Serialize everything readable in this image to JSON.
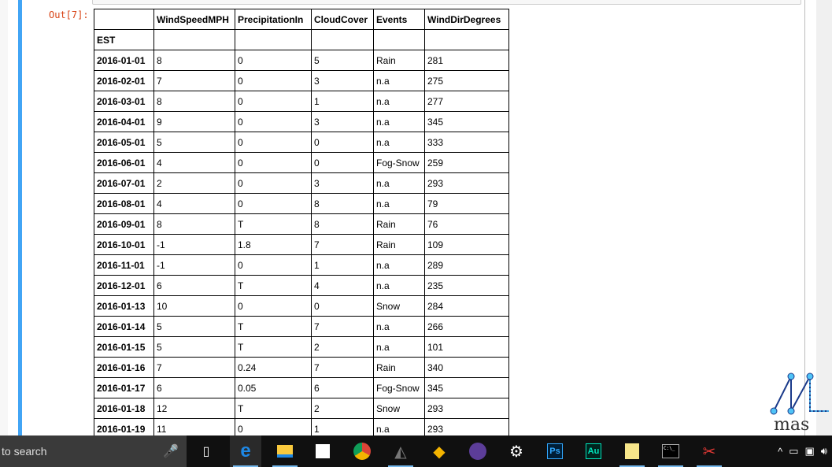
{
  "cell": {
    "prompt": "Out[7]:"
  },
  "table": {
    "columns": [
      "",
      "WindSpeedMPH",
      "PrecipitationIn",
      "CloudCover",
      "Events",
      "WindDirDegrees"
    ],
    "index_name": "EST",
    "rows": [
      [
        "2016-01-01",
        "8",
        "0",
        "5",
        "Rain",
        "281"
      ],
      [
        "2016-02-01",
        "7",
        "0",
        "3",
        "n.a",
        "275"
      ],
      [
        "2016-03-01",
        "8",
        "0",
        "1",
        "n.a",
        "277"
      ],
      [
        "2016-04-01",
        "9",
        "0",
        "3",
        "n.a",
        "345"
      ],
      [
        "2016-05-01",
        "5",
        "0",
        "0",
        "n.a",
        "333"
      ],
      [
        "2016-06-01",
        "4",
        "0",
        "0",
        "Fog-Snow",
        "259"
      ],
      [
        "2016-07-01",
        "2",
        "0",
        "3",
        "n.a",
        "293"
      ],
      [
        "2016-08-01",
        "4",
        "0",
        "8",
        "n.a",
        "79"
      ],
      [
        "2016-09-01",
        "8",
        "T",
        "8",
        "Rain",
        "76"
      ],
      [
        "2016-10-01",
        "-1",
        "1.8",
        "7",
        "Rain",
        "109"
      ],
      [
        "2016-11-01",
        "-1",
        "0",
        "1",
        "n.a",
        "289"
      ],
      [
        "2016-12-01",
        "6",
        "T",
        "4",
        "n.a",
        "235"
      ],
      [
        "2016-01-13",
        "10",
        "0",
        "0",
        "Snow",
        "284"
      ],
      [
        "2016-01-14",
        "5",
        "T",
        "7",
        "n.a",
        "266"
      ],
      [
        "2016-01-15",
        "5",
        "T",
        "2",
        "n.a",
        "101"
      ],
      [
        "2016-01-16",
        "7",
        "0.24",
        "7",
        "Rain",
        "340"
      ],
      [
        "2016-01-17",
        "6",
        "0.05",
        "6",
        "Fog-Snow",
        "345"
      ],
      [
        "2016-01-18",
        "12",
        "T",
        "2",
        "Snow",
        "293"
      ],
      [
        "2016-01-19",
        "11",
        "0",
        "1",
        "n.a",
        "293"
      ]
    ]
  },
  "watermark": {
    "text": "mas"
  },
  "taskbar": {
    "search_text": "to search",
    "icons": [
      "microphone-icon",
      "task-view-icon",
      "edge-icon",
      "file-explorer-icon",
      "store-icon",
      "chrome-icon",
      "atom-icon",
      "git-icon",
      "eclipse-icon",
      "settings-icon",
      "photoshop-icon",
      "audition-icon",
      "sticky-notes-icon",
      "cmd-icon",
      "snipping-tool-icon"
    ],
    "ps_label": "Ps",
    "au_label": "Au",
    "cmd_label": "C:\\_"
  },
  "colors": {
    "accent": "#42a5f5",
    "prompt": "#d84315",
    "taskbar": "#101010"
  }
}
